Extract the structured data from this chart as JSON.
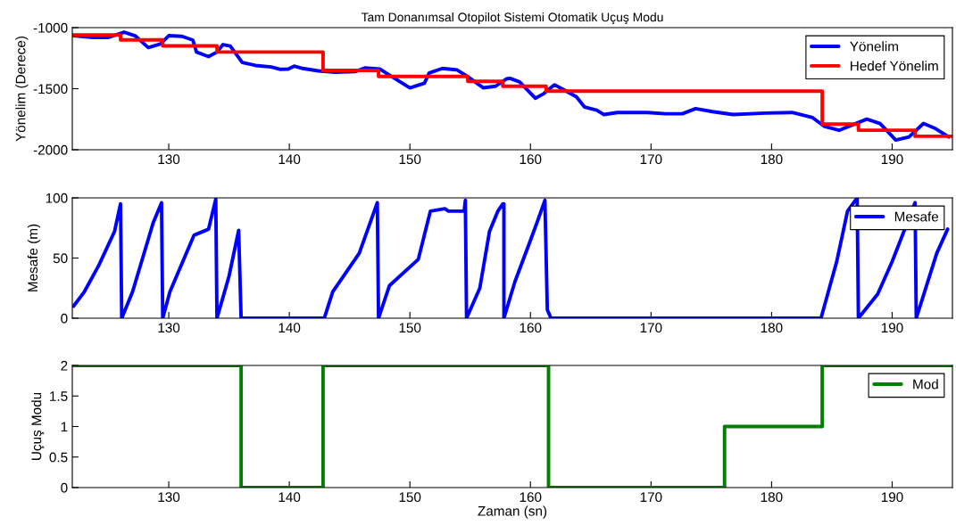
{
  "chart_data": [
    {
      "type": "line",
      "title": "Tam Donanımsal Otopilot Sistemi Otomatik Uçuş Modu",
      "ylabel": "Yönelim (Derece)",
      "xlim": [
        122,
        195
      ],
      "xticks": [
        130,
        140,
        150,
        160,
        170,
        180,
        190
      ],
      "ylim": [
        -2000,
        -1000
      ],
      "yticks": [
        -2000,
        -1500,
        -1000
      ],
      "grid": false,
      "legend": "top right",
      "series": [
        {
          "name": "Yönelim",
          "color": "#0000ff",
          "x": [
            122.1,
            123.75,
            125.0,
            126.3,
            127.2,
            128.3,
            129.3,
            130.0,
            131.1,
            132.0,
            132.3,
            133.3,
            134.0,
            134.5,
            135.1,
            136.1,
            137.2,
            138.5,
            139.2,
            139.9,
            140.4,
            141.1,
            142.4,
            143.8,
            145.5,
            146.3,
            147.5,
            148.2,
            149.2,
            150.0,
            151.2,
            151.6,
            152.7,
            153.9,
            154.7,
            156.1,
            157.1,
            158.0,
            158.3,
            159.1,
            160.4,
            161.1,
            162.0,
            162.7,
            163.8,
            164.5,
            165.5,
            166.1,
            167.2,
            169.7,
            171.2,
            172.6,
            173.7,
            175.1,
            176.8,
            179.5,
            181.7,
            183.4,
            184.4,
            185.6,
            186.8,
            187.9,
            189.0,
            190.3,
            191.4,
            192.6,
            193.6,
            194.7
          ],
          "values": [
            -1066,
            -1080,
            -1080,
            -1037,
            -1066,
            -1163,
            -1134,
            -1066,
            -1071,
            -1102,
            -1200,
            -1237,
            -1200,
            -1139,
            -1151,
            -1285,
            -1310,
            -1322,
            -1341,
            -1339,
            -1315,
            -1334,
            -1354,
            -1366,
            -1359,
            -1329,
            -1339,
            -1383,
            -1444,
            -1493,
            -1456,
            -1371,
            -1334,
            -1346,
            -1395,
            -1493,
            -1480,
            -1420,
            -1415,
            -1444,
            -1578,
            -1541,
            -1468,
            -1505,
            -1566,
            -1651,
            -1676,
            -1712,
            -1695,
            -1695,
            -1705,
            -1705,
            -1663,
            -1688,
            -1712,
            -1700,
            -1695,
            -1737,
            -1810,
            -1841,
            -1793,
            -1749,
            -1785,
            -1920,
            -1895,
            -1785,
            -1827,
            -1895
          ]
        },
        {
          "name": "Hedef Yönelim",
          "type": "step",
          "color": "#ff0000",
          "x": [
            122,
            126.0,
            129.5,
            134.0,
            142.8,
            147.4,
            154.8,
            157.7,
            161.3,
            184.2,
            187.2,
            191.9,
            195
          ],
          "values": [
            -1060,
            -1100,
            -1150,
            -1200,
            -1350,
            -1400,
            -1440,
            -1480,
            -1520,
            -1790,
            -1840,
            -1890,
            -1890
          ]
        }
      ]
    },
    {
      "type": "line",
      "ylabel": "Mesafe (m)",
      "xlim": [
        122,
        195
      ],
      "xticks": [
        130,
        140,
        150,
        160,
        170,
        180,
        190
      ],
      "ylim": [
        0,
        100
      ],
      "yticks": [
        0,
        50,
        100
      ],
      "grid": false,
      "legend": "top right",
      "series": [
        {
          "name": "Mesafe",
          "color": "#0000ff",
          "x": [
            122.1,
            123.0,
            124.2,
            125.5,
            126.0,
            126.1,
            127.0,
            128.7,
            129.4,
            129.5,
            130.1,
            132.1,
            133.3,
            133.9,
            134.0,
            135.0,
            135.8,
            136.0,
            142.9,
            143.6,
            145.8,
            147.3,
            147.4,
            148.3,
            150.7,
            151.7,
            152.9,
            153.2,
            154.5,
            154.6,
            154.7,
            155.8,
            156.6,
            157.3,
            157.7,
            157.8,
            157.8,
            158.7,
            159.9,
            160.6,
            161.2,
            161.4,
            161.7,
            184.1,
            185.4,
            186.3,
            187.1,
            187.2,
            188.8,
            190.0,
            191.9,
            192.0,
            193.7,
            194.6
          ],
          "values": [
            10,
            22,
            44,
            72,
            95,
            0,
            22,
            79,
            96,
            0,
            22,
            69,
            74,
            99,
            0,
            35,
            73,
            0,
            0,
            22,
            54,
            96,
            0,
            27,
            49,
            89,
            91,
            89,
            89,
            98,
            0,
            25,
            72,
            89,
            95,
            95,
            0,
            30,
            62,
            81,
            98,
            7,
            0,
            0,
            47,
            89,
            100,
            0,
            20,
            47,
            96,
            0,
            54,
            74
          ]
        }
      ]
    },
    {
      "type": "step",
      "ylabel": "Uçuş Modu",
      "xlabel": "Zaman (sn)",
      "xlim": [
        122,
        195
      ],
      "xticks": [
        130,
        140,
        150,
        160,
        170,
        180,
        190
      ],
      "ylim": [
        0,
        2
      ],
      "yticks": [
        0,
        0.5,
        1,
        1.5,
        2
      ],
      "grid": false,
      "legend": "top right",
      "series": [
        {
          "name": "Mod",
          "color": "#008000",
          "x": [
            122,
            136.0,
            142.8,
            161.5,
            176.1,
            184.2,
            195
          ],
          "values": [
            2,
            0,
            2,
            0,
            1,
            2,
            2
          ]
        }
      ]
    }
  ]
}
